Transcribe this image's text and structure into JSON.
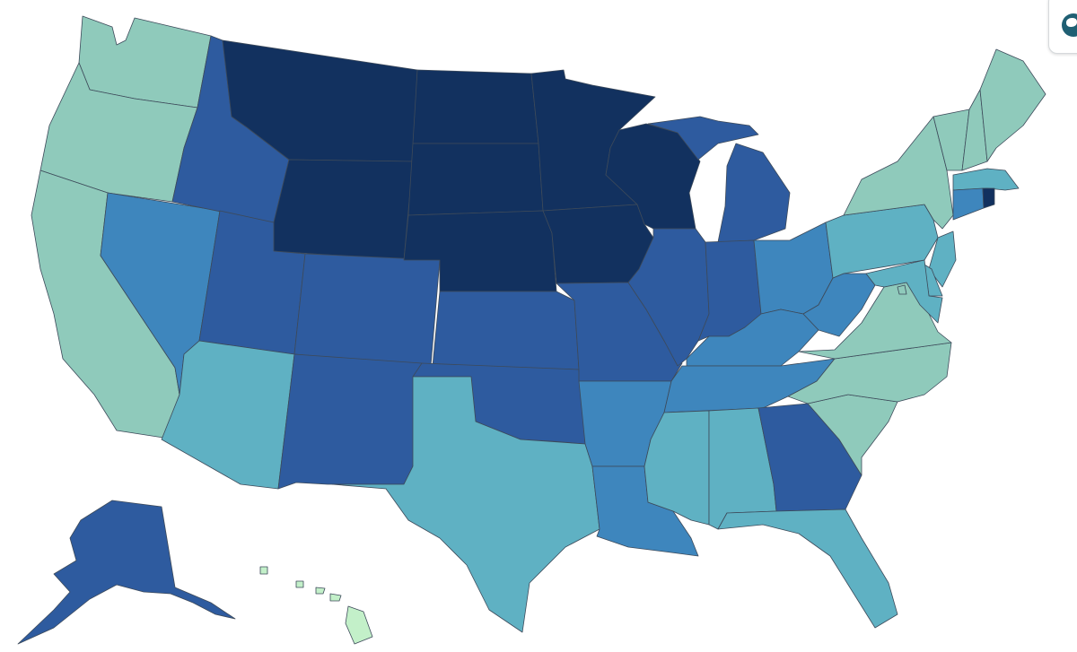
{
  "map": {
    "palette": {
      "darkest": "#12315f",
      "dark": "#2e5b9f",
      "mid": "#3e86bd",
      "teal": "#5fb1c3",
      "light": "#8fcabb",
      "lightest": "#c3f0c9"
    },
    "states": [
      {
        "id": "WA",
        "tier": "light"
      },
      {
        "id": "OR",
        "tier": "light"
      },
      {
        "id": "CA",
        "tier": "light"
      },
      {
        "id": "NV",
        "tier": "mid"
      },
      {
        "id": "ID",
        "tier": "dark"
      },
      {
        "id": "MT",
        "tier": "darkest"
      },
      {
        "id": "WY",
        "tier": "darkest"
      },
      {
        "id": "UT",
        "tier": "dark"
      },
      {
        "id": "CO",
        "tier": "dark"
      },
      {
        "id": "AZ",
        "tier": "teal"
      },
      {
        "id": "NM",
        "tier": "dark"
      },
      {
        "id": "ND",
        "tier": "darkest"
      },
      {
        "id": "SD",
        "tier": "darkest"
      },
      {
        "id": "NE",
        "tier": "darkest"
      },
      {
        "id": "KS",
        "tier": "dark"
      },
      {
        "id": "OK",
        "tier": "dark"
      },
      {
        "id": "TX",
        "tier": "teal"
      },
      {
        "id": "MN",
        "tier": "darkest"
      },
      {
        "id": "IA",
        "tier": "darkest"
      },
      {
        "id": "MO",
        "tier": "dark"
      },
      {
        "id": "AR",
        "tier": "mid"
      },
      {
        "id": "LA",
        "tier": "mid"
      },
      {
        "id": "WI",
        "tier": "darkest"
      },
      {
        "id": "IL",
        "tier": "dark"
      },
      {
        "id": "MI",
        "tier": "dark"
      },
      {
        "id": "IN",
        "tier": "dark"
      },
      {
        "id": "OH",
        "tier": "mid"
      },
      {
        "id": "KY",
        "tier": "mid"
      },
      {
        "id": "TN",
        "tier": "mid"
      },
      {
        "id": "MS",
        "tier": "teal"
      },
      {
        "id": "AL",
        "tier": "teal"
      },
      {
        "id": "GA",
        "tier": "dark"
      },
      {
        "id": "FL",
        "tier": "teal"
      },
      {
        "id": "SC",
        "tier": "light"
      },
      {
        "id": "NC",
        "tier": "light"
      },
      {
        "id": "VA",
        "tier": "light"
      },
      {
        "id": "WV",
        "tier": "mid"
      },
      {
        "id": "PA",
        "tier": "teal"
      },
      {
        "id": "NY",
        "tier": "light"
      },
      {
        "id": "VT",
        "tier": "light"
      },
      {
        "id": "NH",
        "tier": "light"
      },
      {
        "id": "ME",
        "tier": "light"
      },
      {
        "id": "MA",
        "tier": "teal"
      },
      {
        "id": "RI",
        "tier": "darkest"
      },
      {
        "id": "CT",
        "tier": "mid"
      },
      {
        "id": "NJ",
        "tier": "teal"
      },
      {
        "id": "DE",
        "tier": "teal"
      },
      {
        "id": "MD",
        "tier": "teal"
      },
      {
        "id": "DC",
        "tier": "light"
      },
      {
        "id": "AK",
        "tier": "dark"
      },
      {
        "id": "HI",
        "tier": "lightest"
      }
    ]
  },
  "controls": {
    "corner": {
      "icon": "globe-icon"
    }
  }
}
